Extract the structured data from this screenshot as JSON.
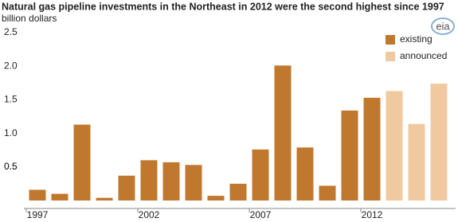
{
  "chart_data": {
    "type": "bar",
    "title": "Natural  gas pipeline investments in the Northeast in 2012 were the second highest since 1997",
    "subtitle": "billion dollars",
    "logo": "eia",
    "categories": [
      "1997",
      null,
      null,
      null,
      null,
      "2002",
      null,
      null,
      null,
      null,
      "2007",
      null,
      null,
      null,
      null,
      "2012",
      null,
      null,
      null
    ],
    "series": [
      {
        "name": "existing",
        "color": "#c0782f",
        "values": [
          0.16,
          0.1,
          1.13,
          0.04,
          0.37,
          0.6,
          0.57,
          0.53,
          0.07,
          0.25,
          0.76,
          2.01,
          0.79,
          0.22,
          1.34,
          1.53,
          null,
          null,
          null
        ]
      },
      {
        "name": "announced",
        "color": "#f1c9a1",
        "values": [
          null,
          null,
          null,
          null,
          null,
          null,
          null,
          null,
          null,
          null,
          null,
          null,
          null,
          null,
          null,
          null,
          1.63,
          1.14,
          1.74
        ]
      }
    ],
    "ylim": [
      0,
      2.5
    ],
    "yticks": [
      0.5,
      {
        "value": 1,
        "label": "1.0"
      },
      0.5,
      {
        "value": 1.5,
        "label": "1.5"
      },
      {
        "value": 2,
        "label": "2.0"
      },
      2.5
    ],
    "legend": "top-right"
  }
}
